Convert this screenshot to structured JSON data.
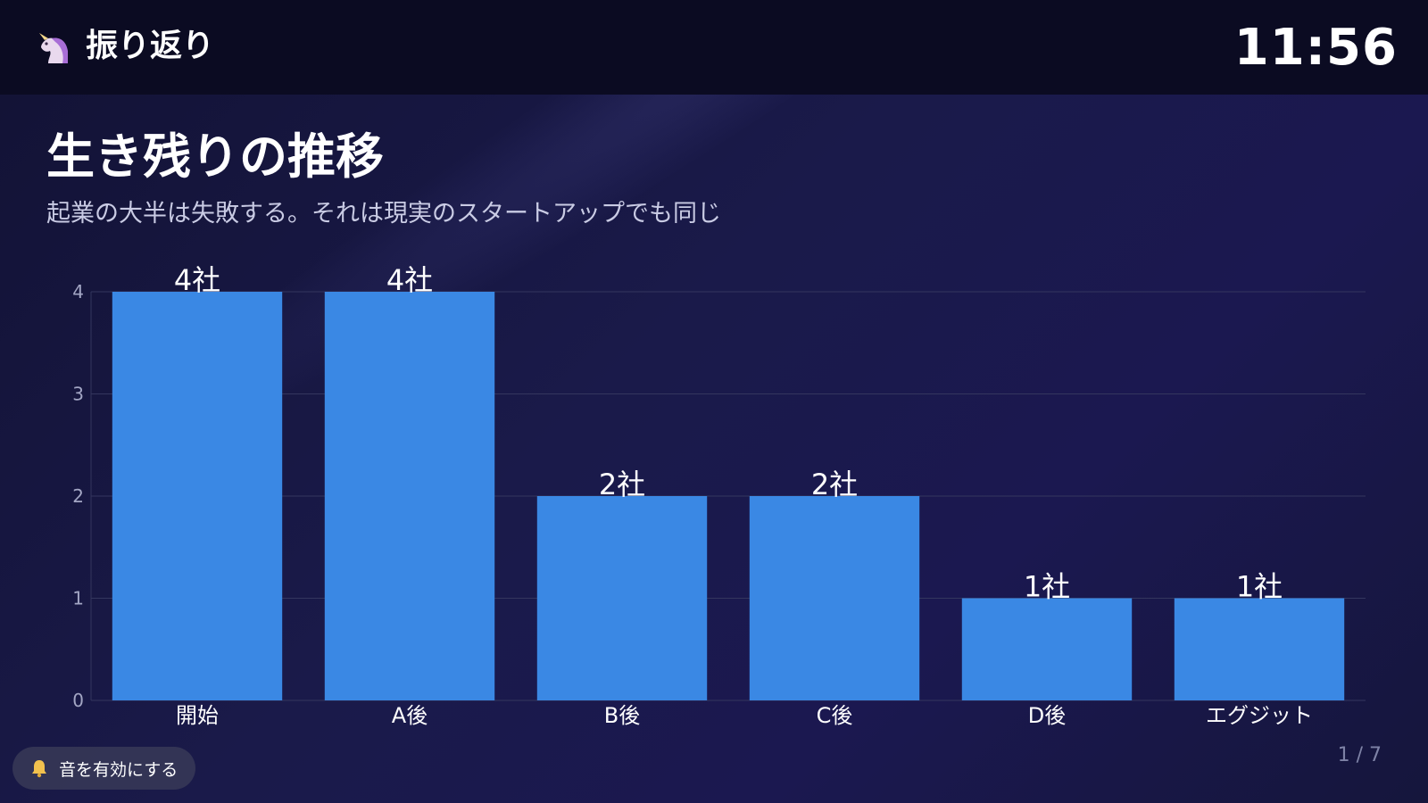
{
  "header": {
    "icon": "unicorn-icon",
    "title": "振り返り",
    "clock": "11:56"
  },
  "slide": {
    "title": "生き残りの推移",
    "subtitle": "起業の大半は失敗する。それは現実のスタートアップでも同じ"
  },
  "chart_data": {
    "type": "bar",
    "categories": [
      "開始",
      "A後",
      "B後",
      "C後",
      "D後",
      "エグジット"
    ],
    "values": [
      4,
      4,
      2,
      2,
      1,
      1
    ],
    "value_labels": [
      "4社",
      "4社",
      "2社",
      "2社",
      "1社",
      "1社"
    ],
    "ylim": [
      0,
      4
    ],
    "yticks": [
      "0",
      "1",
      "2",
      "3",
      "4"
    ],
    "grid": true,
    "bar_color": "#3a88e4",
    "grid_color": "#34365e"
  },
  "footer": {
    "sound_icon": "bell-icon",
    "sound_label": "音を有効にする",
    "page_indicator": "1 / 7"
  }
}
